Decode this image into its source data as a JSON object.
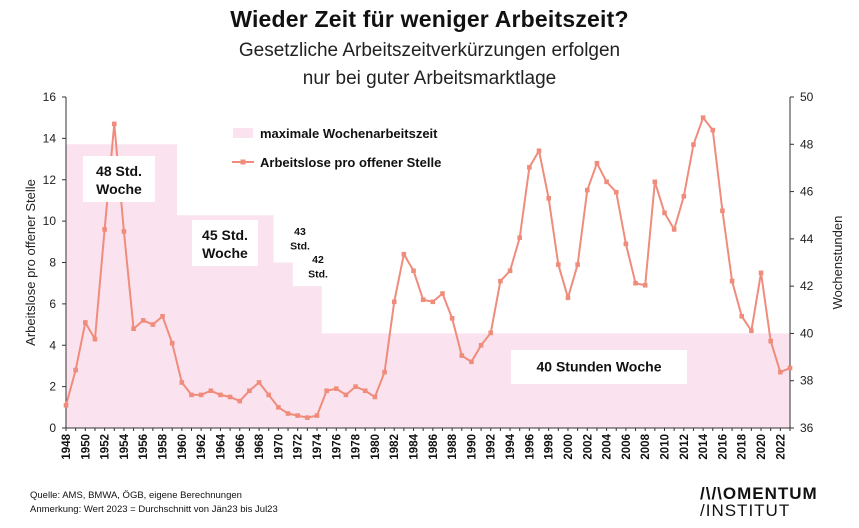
{
  "title": "Wieder Zeit für weniger Arbeitszeit?",
  "subtitle_line1": "Gesetzliche Arbeitszeitverkürzungen erfolgen",
  "subtitle_line2": "nur bei guter Arbeitsmarktlage",
  "footnote_source": "Quelle: AMS, BMWA, ÖGB, eigene Berechnungen",
  "footnote_note": "Anmerkung: Wert 2023 = Durchschnitt von Jän23 bis Jul23",
  "logo_line1": "/\\/\\OMENTUM",
  "logo_line2": "/INSTITUT",
  "colors": {
    "line": "#ef8c7c",
    "area": "#fae3ee"
  },
  "chart_data": {
    "type": "line",
    "x": [
      1948,
      1949,
      1950,
      1951,
      1952,
      1953,
      1954,
      1955,
      1956,
      1957,
      1958,
      1959,
      1960,
      1961,
      1962,
      1963,
      1964,
      1965,
      1966,
      1967,
      1968,
      1969,
      1970,
      1971,
      1972,
      1973,
      1974,
      1975,
      1976,
      1977,
      1978,
      1979,
      1980,
      1981,
      1982,
      1983,
      1984,
      1985,
      1986,
      1987,
      1988,
      1989,
      1990,
      1991,
      1992,
      1993,
      1994,
      1995,
      1996,
      1997,
      1998,
      1999,
      2000,
      2001,
      2002,
      2003,
      2004,
      2005,
      2006,
      2007,
      2008,
      2009,
      2010,
      2011,
      2012,
      2013,
      2014,
      2015,
      2016,
      2017,
      2018,
      2019,
      2020,
      2021,
      2022,
      2023
    ],
    "x_tick_labels": [
      "1948",
      "1950",
      "1952",
      "1954",
      "1956",
      "1958",
      "1960",
      "1962",
      "1964",
      "1966",
      "1968",
      "1970",
      "1972",
      "1974",
      "1976",
      "1978",
      "1980",
      "1982",
      "1984",
      "1986",
      "1988",
      "1990",
      "1992",
      "1994",
      "1996",
      "1998",
      "2000",
      "2002",
      "2004",
      "2006",
      "2008",
      "2010",
      "2012",
      "2014",
      "2016",
      "2018",
      "2020",
      "2022"
    ],
    "ylabel_left": "Arbeitslose pro offener Stelle",
    "ylabel_right": "Wochenstunden",
    "ylim_left": [
      0,
      16
    ],
    "ylim_right": [
      36,
      50
    ],
    "y_ticks_left": [
      "0",
      "2",
      "4",
      "6",
      "8",
      "10",
      "12",
      "14",
      "16"
    ],
    "y_ticks_right": [
      "36",
      "38",
      "40",
      "42",
      "44",
      "46",
      "48",
      "50"
    ],
    "legend_position": "top-center",
    "series": [
      {
        "name": "maximale Wochenarbeitszeit",
        "kind": "area",
        "axis": "right",
        "values": [
          48,
          48,
          48,
          48,
          48,
          48,
          48,
          48,
          48,
          48,
          48,
          48,
          45,
          45,
          45,
          45,
          45,
          45,
          45,
          45,
          45,
          45,
          43,
          43,
          42,
          42,
          42,
          40,
          40,
          40,
          40,
          40,
          40,
          40,
          40,
          40,
          40,
          40,
          40,
          40,
          40,
          40,
          40,
          40,
          40,
          40,
          40,
          40,
          40,
          40,
          40,
          40,
          40,
          40,
          40,
          40,
          40,
          40,
          40,
          40,
          40,
          40,
          40,
          40,
          40,
          40,
          40,
          40,
          40,
          40,
          40,
          40,
          40,
          40,
          40,
          40
        ]
      },
      {
        "name": "Arbeitslose pro offener Stelle",
        "kind": "line",
        "axis": "left",
        "values": [
          1.1,
          2.8,
          5.1,
          4.3,
          9.6,
          14.7,
          9.5,
          4.8,
          5.2,
          5.0,
          5.4,
          4.1,
          2.2,
          1.6,
          1.6,
          1.8,
          1.6,
          1.5,
          1.3,
          1.8,
          2.2,
          1.6,
          1.0,
          0.7,
          0.6,
          0.5,
          0.6,
          1.8,
          1.9,
          1.6,
          2.0,
          1.8,
          1.5,
          2.7,
          6.1,
          8.4,
          7.6,
          6.2,
          6.1,
          6.5,
          5.3,
          3.5,
          3.2,
          4.0,
          4.6,
          7.1,
          7.6,
          9.2,
          12.6,
          13.4,
          11.1,
          7.9,
          6.3,
          7.9,
          11.5,
          12.8,
          11.9,
          11.4,
          8.9,
          7.0,
          6.9,
          11.9,
          10.4,
          9.6,
          11.2,
          13.7,
          15.0,
          14.4,
          10.5,
          7.1,
          5.4,
          4.7,
          7.5,
          4.2,
          2.7,
          2.9
        ]
      }
    ],
    "annotations": [
      {
        "year_from": 1948,
        "year_to": 1959,
        "line1": "48 Std.",
        "line2": "Woche"
      },
      {
        "year_from": 1960,
        "year_to": 1969,
        "line1": "45 Std.",
        "line2": "Woche"
      },
      {
        "year_from": 1970,
        "year_to": 1971,
        "line1": "43",
        "line2": "Std."
      },
      {
        "year_from": 1972,
        "year_to": 1974,
        "line1": "42",
        "line2": "Std."
      },
      {
        "year_from": 1975,
        "year_to": 2023,
        "line1": "40 Stunden Woche",
        "line2": ""
      }
    ]
  }
}
